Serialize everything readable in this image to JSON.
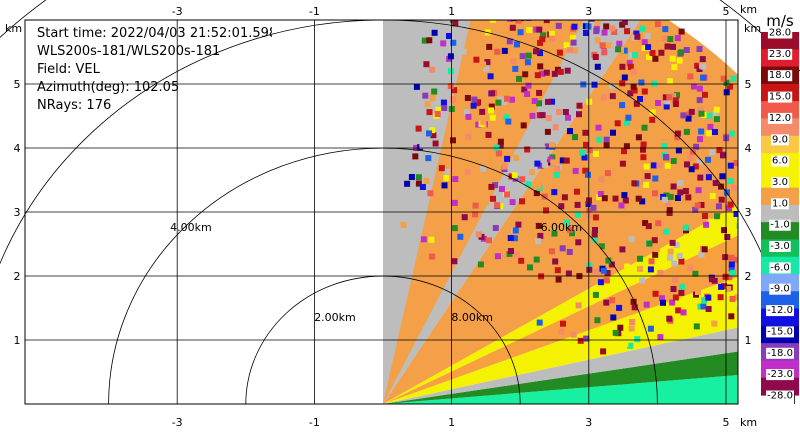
{
  "info": {
    "start_time": "Start time: 2022/04/03 21:52:01.598",
    "instrument": "WLS200s-181/WLS200s-181",
    "field": "Field: VEL",
    "azimuth": "Azimuth(deg): 102.05",
    "nrays": "NRays: 176"
  },
  "chart_data": {
    "type": "heatmap",
    "title": "",
    "xlabel": "km",
    "ylabel": "km",
    "xlim": [
      -5,
      5
    ],
    "ylim": [
      0,
      5.5
    ],
    "x_ticks": [
      -3,
      -1,
      1,
      3,
      5
    ],
    "y_ticks": [
      1,
      2,
      3,
      4,
      5
    ],
    "x_tick_labels": [
      "-3",
      "-1",
      "1",
      "3",
      "5"
    ],
    "y_tick_labels": [
      "1",
      "2",
      "3",
      "4",
      "5"
    ],
    "grid": true,
    "scan_sector_deg": [
      0,
      90
    ],
    "range_rings": [
      {
        "radius_km": 2,
        "label": "2.00km"
      },
      {
        "radius_km": 4,
        "label": "4.00km"
      },
      {
        "radius_km": 6,
        "label": "6.00km"
      },
      {
        "radius_km": 8,
        "label": "8.00km"
      }
    ],
    "colorbar": {
      "unit": "m/s",
      "range": [
        -28,
        28
      ],
      "tick_labels": [
        "28.0",
        "23.0",
        "18.0",
        "15.0",
        "12.0",
        "9.0",
        "6.0",
        "3.0",
        "1.0",
        "-1.0",
        "-3.0",
        "-6.0",
        "-9.0",
        "-12.0",
        "-15.0",
        "-18.0",
        "-23.0",
        "-28.0"
      ],
      "colors": [
        "#9b0b2a",
        "#e01c2e",
        "#7a0a0a",
        "#c81414",
        "#ef5a4a",
        "#f58a6a",
        "#fbc846",
        "#f7f300",
        "#f7f300",
        "#f3a048",
        "#bdbdbd",
        "#238b23",
        "#11c05a",
        "#17e8a4",
        "#7fa8f8",
        "#1f60e8",
        "#1010e0",
        "#0000b0",
        "#8a3cb8",
        "#c030c8",
        "#8e0a4a"
      ]
    },
    "bands": [
      {
        "r0": 0,
        "r1": 7.3,
        "a0": 0,
        "a1": 5,
        "color": "#17f0a0"
      },
      {
        "r0": 0,
        "r1": 7.3,
        "a0": 5,
        "a1": 9,
        "color": "#228b22"
      },
      {
        "r0": 0,
        "r1": 7.3,
        "a0": 9,
        "a1": 13,
        "color": "#bdbdbd"
      },
      {
        "r0": 0,
        "r1": 7.3,
        "a0": 13,
        "a1": 21,
        "color": "#f5f200"
      },
      {
        "r0": 0,
        "r1": 7.3,
        "a0": 21,
        "a1": 27,
        "color": "#f6a040"
      },
      {
        "r0": 0,
        "r1": 7.3,
        "a0": 27,
        "a1": 31,
        "color": "#f5f200"
      },
      {
        "r0": 0,
        "r1": 7.3,
        "a0": 31,
        "a1": 58,
        "color": "#f3a048"
      },
      {
        "r0": 0,
        "r1": 7.3,
        "a0": 58,
        "a1": 90,
        "color": "#bdbdbd"
      },
      {
        "r0": 0,
        "r1": 7.3,
        "a0": 64,
        "a1": 78,
        "color": "#f3a048"
      }
    ],
    "noise_region": {
      "r_min": 2.2,
      "r_max": 7.3,
      "a_min": 15,
      "a_max": 85
    },
    "noise_colors": [
      "#9b0b2a",
      "#7a0a0a",
      "#c81414",
      "#ef5a4a",
      "#f58a6a",
      "#f7f300",
      "#f3a048",
      "#238b23",
      "#17e8a4",
      "#1f60e8",
      "#1010e0",
      "#0000b0",
      "#8a3cb8",
      "#c030c8",
      "#8e0a4a",
      "#bdbdbd"
    ]
  }
}
